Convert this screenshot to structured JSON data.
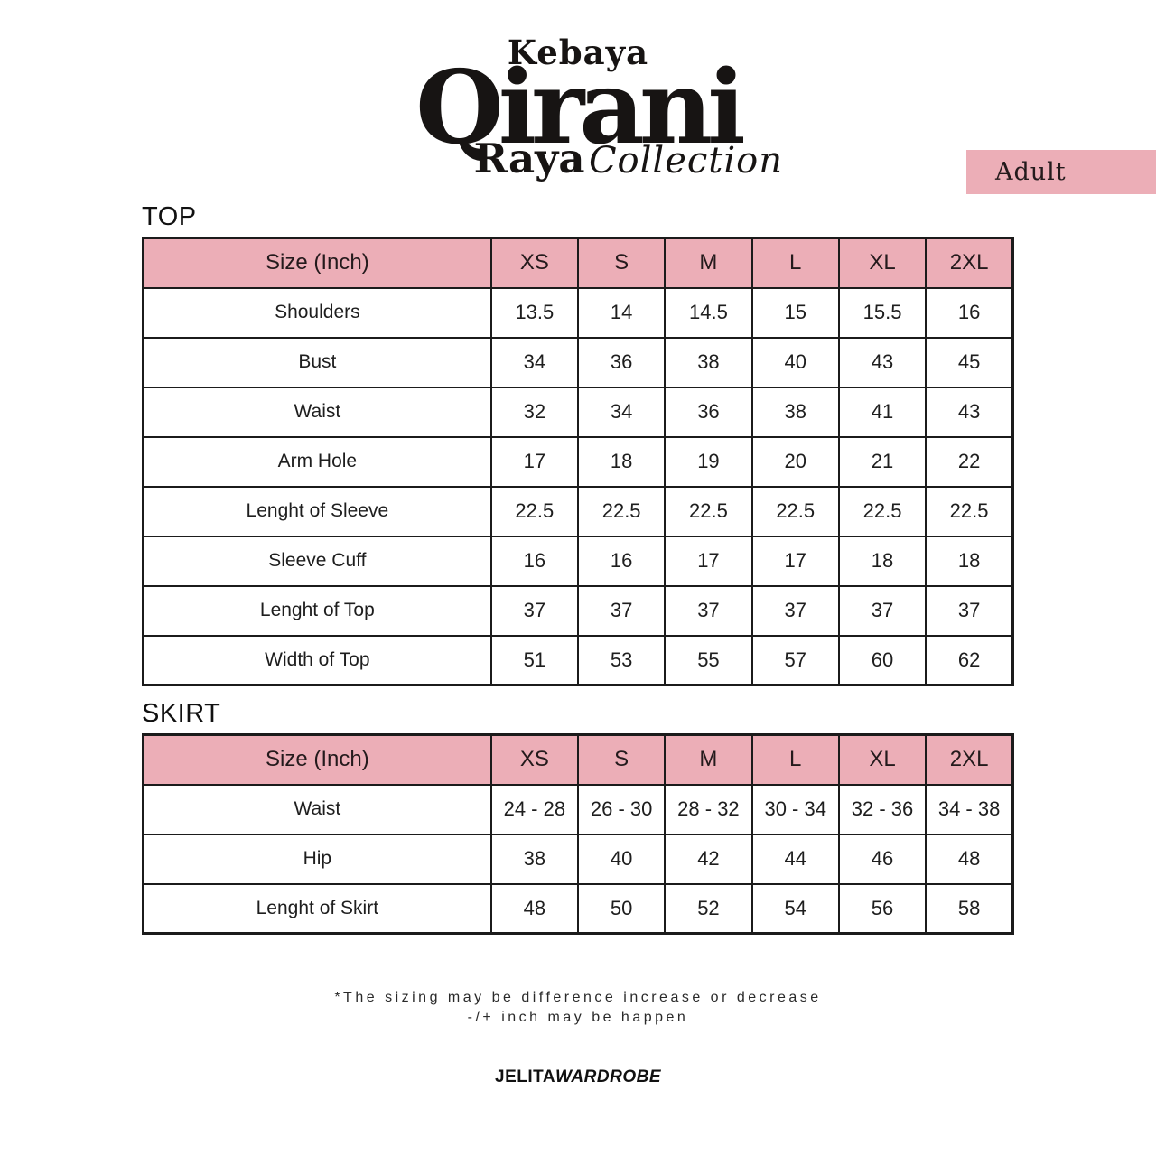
{
  "colors": {
    "pink": "#ecaeb7",
    "border": "#1b1b1b",
    "text": "#1e1e1e"
  },
  "brand": {
    "kebaya": "Kebaya",
    "qirani": "Qirani",
    "raya": "Raya",
    "collection": "Collection"
  },
  "badge": {
    "label": "Adult"
  },
  "sections": {
    "top_label": "TOP",
    "skirt_label": "SKIRT"
  },
  "tables": [
    {
      "name": "top",
      "header": [
        "Size (Inch)",
        "XS",
        "S",
        "M",
        "L",
        "XL",
        "2XL"
      ],
      "rows": [
        [
          "Shoulders",
          "13.5",
          "14",
          "14.5",
          "15",
          "15.5",
          "16"
        ],
        [
          "Bust",
          "34",
          "36",
          "38",
          "40",
          "43",
          "45"
        ],
        [
          "Waist",
          "32",
          "34",
          "36",
          "38",
          "41",
          "43"
        ],
        [
          "Arm Hole",
          "17",
          "18",
          "19",
          "20",
          "21",
          "22"
        ],
        [
          "Lenght of Sleeve",
          "22.5",
          "22.5",
          "22.5",
          "22.5",
          "22.5",
          "22.5"
        ],
        [
          "Sleeve Cuff",
          "16",
          "16",
          "17",
          "17",
          "18",
          "18"
        ],
        [
          "Lenght of Top",
          "37",
          "37",
          "37",
          "37",
          "37",
          "37"
        ],
        [
          "Width of Top",
          "51",
          "53",
          "55",
          "57",
          "60",
          "62"
        ]
      ]
    },
    {
      "name": "skirt",
      "header": [
        "Size (Inch)",
        "XS",
        "S",
        "M",
        "L",
        "XL",
        "2XL"
      ],
      "rows": [
        [
          "Waist",
          "24 - 28",
          "26 - 30",
          "28 - 32",
          "30 - 34",
          "32 - 36",
          "34 - 38"
        ],
        [
          "Hip",
          "38",
          "40",
          "42",
          "44",
          "46",
          "48"
        ],
        [
          "Lenght of Skirt",
          "48",
          "50",
          "52",
          "54",
          "56",
          "58"
        ]
      ]
    }
  ],
  "footnote": {
    "line1": "*The sizing may be difference increase or decrease",
    "line2": "-/+ inch may be happen"
  },
  "footer": {
    "brand_regular": "JELITA",
    "brand_italic": "WARDROBE"
  }
}
